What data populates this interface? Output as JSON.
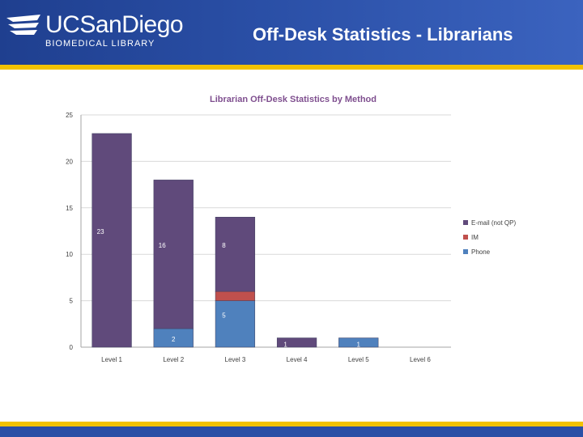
{
  "header": {
    "logo_main": "UCSanDiego",
    "logo_sub": "BIOMEDICAL LIBRARY",
    "slide_title": "Off-Desk Statistics - Librarians",
    "bg_color": "#2a4fa6",
    "accent_color": "#f2c200"
  },
  "chart_data": {
    "type": "bar",
    "stacked": true,
    "title": "Librarian Off-Desk Statistics by Method",
    "xlabel": "",
    "ylabel": "",
    "ylim": [
      0,
      25
    ],
    "yticks": [
      0,
      5,
      10,
      15,
      20,
      25
    ],
    "grid": true,
    "legend_position": "right",
    "categories": [
      "Level 1",
      "Level 2",
      "Level 3",
      "Level 4",
      "Level 5",
      "Level 6"
    ],
    "series": [
      {
        "name": "Phone",
        "color": "#4f81bd",
        "values": [
          0,
          2,
          5,
          0,
          1,
          0
        ]
      },
      {
        "name": "IM",
        "color": "#c0504d",
        "values": [
          0,
          0,
          1,
          0,
          0,
          0
        ]
      },
      {
        "name": "E-mail (not QP)",
        "color": "#604a7b",
        "values": [
          23,
          16,
          8,
          1,
          0,
          0
        ]
      }
    ],
    "data_labels": [
      {
        "category": "Level 1",
        "series": "E-mail (not QP)",
        "text": "23"
      },
      {
        "category": "Level 2",
        "series": "E-mail (not QP)",
        "text": "16"
      },
      {
        "category": "Level 2",
        "series": "Phone",
        "text": "2"
      },
      {
        "category": "Level 3",
        "series": "E-mail (not QP)",
        "text": "8"
      },
      {
        "category": "Level 3",
        "series": "Phone",
        "text": "5"
      },
      {
        "category": "Level 4",
        "series": "E-mail (not QP)",
        "text": "1"
      },
      {
        "category": "Level 5",
        "series": "Phone",
        "text": "1"
      }
    ]
  }
}
